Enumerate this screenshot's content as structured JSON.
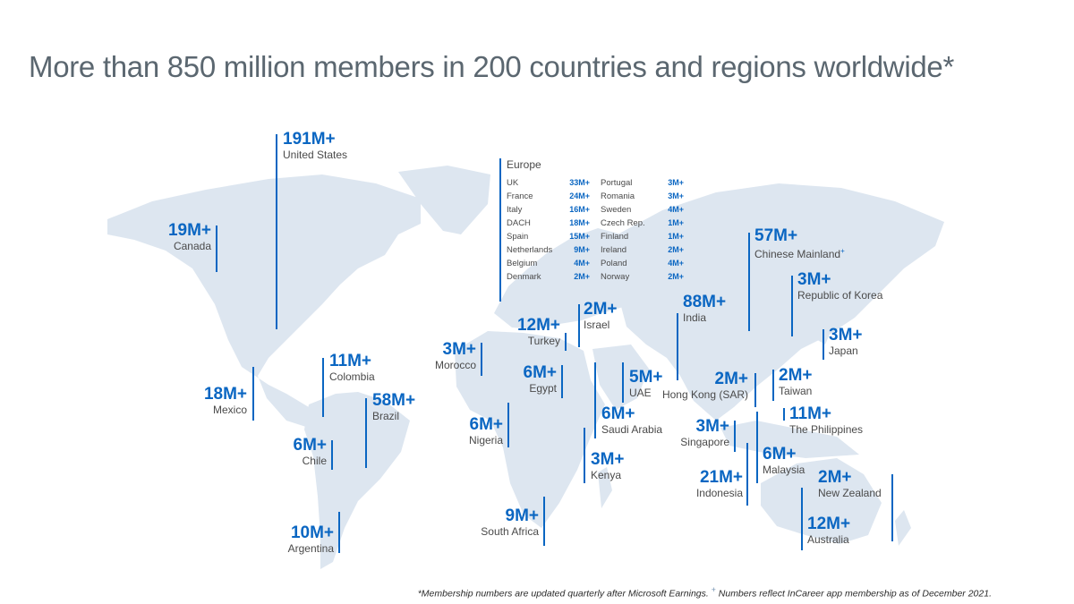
{
  "title": "More than 850 million members in 200 countries and regions worldwide*",
  "footnote": {
    "part1": "*Membership numbers are updated quarterly after Microsoft Earnings.",
    "mark": "+",
    "part2": "Numbers reflect InCareer app membership as of December 2021."
  },
  "colors": {
    "accent": "#0a66c2",
    "land": "#dde6f0",
    "text": "#4a4a4a"
  },
  "regions": [
    {
      "value": "191M+",
      "name": "United States"
    },
    {
      "value": "19M+",
      "name": "Canada"
    },
    {
      "value": "18M+",
      "name": "Mexico"
    },
    {
      "value": "11M+",
      "name": "Colombia"
    },
    {
      "value": "58M+",
      "name": "Brazil"
    },
    {
      "value": "6M+",
      "name": "Chile"
    },
    {
      "value": "10M+",
      "name": "Argentina"
    },
    {
      "value": "3M+",
      "name": "Morocco"
    },
    {
      "value": "6M+",
      "name": "Nigeria"
    },
    {
      "value": "9M+",
      "name": "South Africa"
    },
    {
      "value": "6M+",
      "name": "Egypt"
    },
    {
      "value": "12M+",
      "name": "Turkey"
    },
    {
      "value": "2M+",
      "name": "Israel"
    },
    {
      "value": "6M+",
      "name": "Saudi Arabia"
    },
    {
      "value": "3M+",
      "name": "Kenya"
    },
    {
      "value": "5M+",
      "name": "UAE"
    },
    {
      "value": "88M+",
      "name": "India"
    },
    {
      "value": "57M+",
      "name": "Chinese Mainland",
      "mark": "+"
    },
    {
      "value": "3M+",
      "name": "Republic of Korea"
    },
    {
      "value": "3M+",
      "name": "Japan"
    },
    {
      "value": "2M+",
      "name": "Hong Kong (SAR)"
    },
    {
      "value": "2M+",
      "name": "Taiwan"
    },
    {
      "value": "11M+",
      "name": "The Philippines"
    },
    {
      "value": "3M+",
      "name": "Singapore"
    },
    {
      "value": "6M+",
      "name": "Malaysia"
    },
    {
      "value": "21M+",
      "name": "Indonesia"
    },
    {
      "value": "2M+",
      "name": "New Zealand"
    },
    {
      "value": "12M+",
      "name": "Australia"
    }
  ],
  "europe": {
    "heading": "Europe",
    "left": [
      {
        "name": "UK",
        "value": "33M+"
      },
      {
        "name": "France",
        "value": "24M+"
      },
      {
        "name": "Italy",
        "value": "16M+"
      },
      {
        "name": "DACH",
        "value": "18M+"
      },
      {
        "name": "Spain",
        "value": "15M+"
      },
      {
        "name": "Netherlands",
        "value": "9M+"
      },
      {
        "name": "Belgium",
        "value": "4M+"
      },
      {
        "name": "Denmark",
        "value": "2M+"
      }
    ],
    "right": [
      {
        "name": "Portugal",
        "value": "3M+"
      },
      {
        "name": "Romania",
        "value": "3M+"
      },
      {
        "name": "Sweden",
        "value": "4M+"
      },
      {
        "name": "Czech Rep.",
        "value": "1M+"
      },
      {
        "name": "Finland",
        "value": "1M+"
      },
      {
        "name": "Ireland",
        "value": "2M+"
      },
      {
        "name": "Poland",
        "value": "4M+"
      },
      {
        "name": "Norway",
        "value": "2M+"
      }
    ]
  }
}
